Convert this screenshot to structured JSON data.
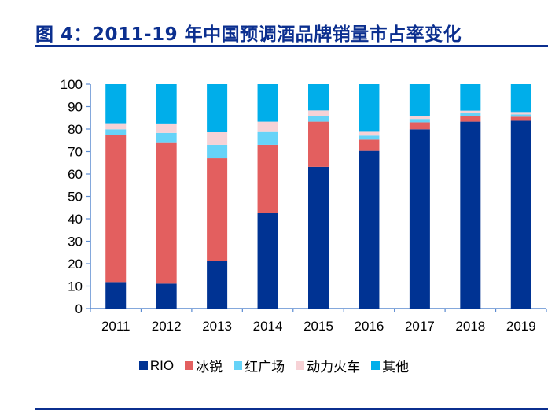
{
  "title": "图 4：2011-19 年中国预调酒品牌销量市占率变化",
  "chart_data": {
    "type": "bar",
    "stacked": true,
    "title": "图 4：2011-19 年中国预调酒品牌销量市占率变化",
    "xlabel": "",
    "ylabel": "",
    "ylim": [
      0,
      100
    ],
    "yticks": [
      0,
      10,
      20,
      30,
      40,
      50,
      60,
      70,
      80,
      90,
      100
    ],
    "grid": false,
    "legend_position": "bottom",
    "categories": [
      "2011",
      "2012",
      "2013",
      "2014",
      "2015",
      "2016",
      "2017",
      "2018",
      "2019"
    ],
    "series": [
      {
        "name": "RIO",
        "color": "#003393",
        "values": [
          11.8,
          11.1,
          21.3,
          42.6,
          63.2,
          70.3,
          79.9,
          83.3,
          83.7
        ]
      },
      {
        "name": "冰锐",
        "color": "#e35f5f",
        "values": [
          65.6,
          62.7,
          45.7,
          30.4,
          20.1,
          5.0,
          3.1,
          2.5,
          1.8
        ]
      },
      {
        "name": "红广场",
        "color": "#66d3f8",
        "values": [
          2.5,
          4.5,
          6.0,
          5.7,
          2.4,
          1.8,
          1.5,
          1.4,
          1.0
        ]
      },
      {
        "name": "动力火车",
        "color": "#f7d2d6",
        "values": [
          2.7,
          4.2,
          5.6,
          4.6,
          2.6,
          1.7,
          1.3,
          1.0,
          1.1
        ]
      },
      {
        "name": "其他",
        "color": "#00aeea",
        "values": [
          17.4,
          17.5,
          21.4,
          16.7,
          11.7,
          21.2,
          14.2,
          11.8,
          12.4
        ]
      }
    ]
  }
}
